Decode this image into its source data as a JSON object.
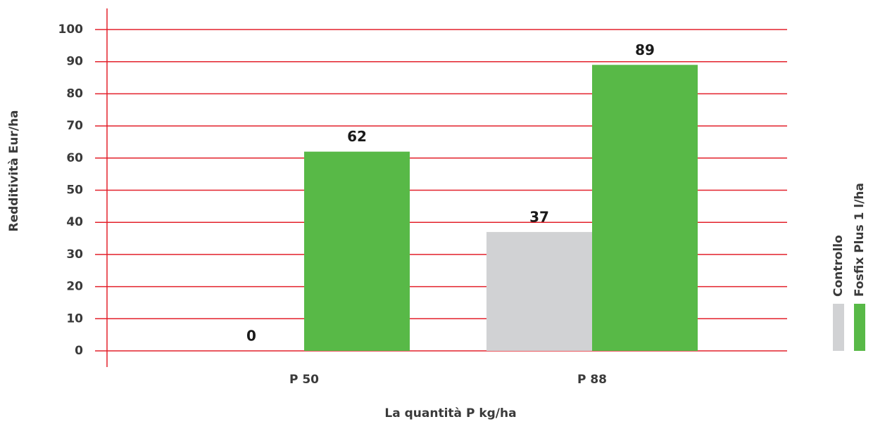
{
  "chart_data": {
    "type": "bar",
    "categories": [
      "P 50",
      "P 88"
    ],
    "series": [
      {
        "name": "Controllo",
        "color": "#d1d2d4",
        "values": [
          0,
          37
        ]
      },
      {
        "name": "Fosfix Plus 1 l/ha",
        "color": "#58b947",
        "values": [
          62,
          89
        ]
      }
    ],
    "x_label": "La quantità P kg/ha",
    "y_label": "Redditività Eur/ha",
    "ylim": [
      0,
      100
    ],
    "yticks": [
      0,
      10,
      20,
      30,
      40,
      50,
      60,
      70,
      80,
      90,
      100
    ],
    "grid": true,
    "grid_color": "#e3212b",
    "legend": "right"
  }
}
